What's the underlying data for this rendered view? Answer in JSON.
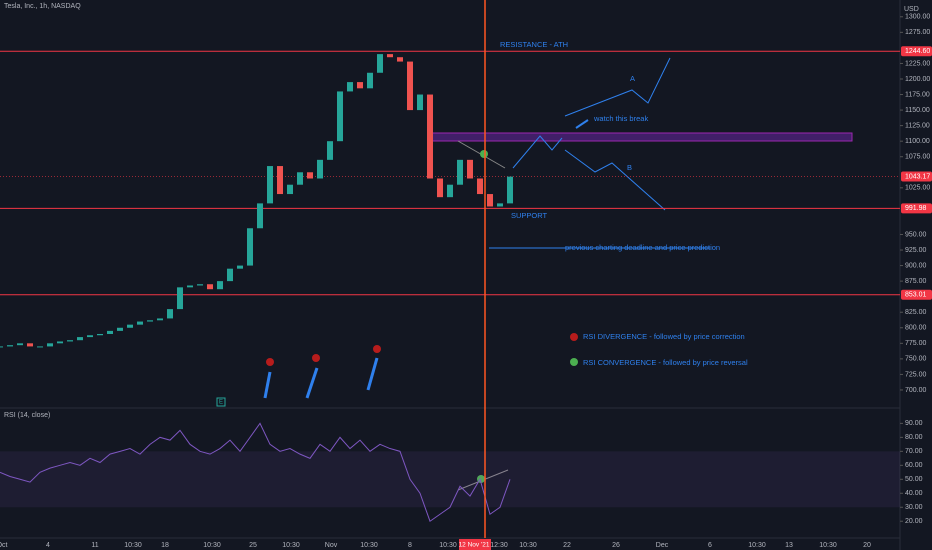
{
  "header": {
    "title": "Tesla, Inc., 1h, NASDAQ",
    "currency": "USD"
  },
  "price": {
    "ylim": [
      671,
      1327
    ],
    "yticks": [
      {
        "value": 700,
        "label": "700.00"
      },
      {
        "value": 725,
        "label": "725.00"
      },
      {
        "value": 750,
        "label": "750.00"
      },
      {
        "value": 775,
        "label": "775.00"
      },
      {
        "value": 800,
        "label": "800.00"
      },
      {
        "value": 825,
        "label": "825.00"
      },
      {
        "value": 875,
        "label": "875.00"
      },
      {
        "value": 900,
        "label": "900.00"
      },
      {
        "value": 925,
        "label": "925.00"
      },
      {
        "value": 950,
        "label": "950.00"
      },
      {
        "value": 1025,
        "label": "1025.00"
      },
      {
        "value": 1075,
        "label": "1075.00"
      },
      {
        "value": 1100,
        "label": "1100.00"
      },
      {
        "value": 1125,
        "label": "1125.00"
      },
      {
        "value": 1150,
        "label": "1150.00"
      },
      {
        "value": 1175,
        "label": "1175.00"
      },
      {
        "value": 1200,
        "label": "1200.00"
      },
      {
        "value": 1225,
        "label": "1225.00"
      },
      {
        "value": 1275,
        "label": "1275.00"
      },
      {
        "value": 1300,
        "label": "1300.00"
      }
    ],
    "levels": [
      {
        "value": 1244.6,
        "label": "1244.60"
      },
      {
        "value": 991.98,
        "label": "991.98"
      },
      {
        "value": 853.01,
        "label": "853.01"
      }
    ],
    "last": {
      "value": 1043.17,
      "label": "1043.17"
    },
    "values": [
      770,
      772,
      775,
      770,
      770,
      775,
      778,
      780,
      785,
      788,
      790,
      795,
      800,
      805,
      810,
      812,
      815,
      830,
      865,
      868,
      870,
      862,
      875,
      895,
      900,
      960,
      1000,
      1060,
      1015,
      1030,
      1050,
      1040,
      1070,
      1100,
      1180,
      1195,
      1185,
      1210,
      1240,
      1235,
      1228,
      1150,
      1175,
      1040,
      1010,
      1030,
      1070,
      1040,
      1015,
      995,
      1000,
      1043
    ]
  },
  "rsi": {
    "title": "RSI (14, close)",
    "ylim": [
      8,
      101
    ],
    "yticks": [
      {
        "value": 20,
        "label": "20.00"
      },
      {
        "value": 30,
        "label": "30.00"
      },
      {
        "value": 40,
        "label": "40.00"
      },
      {
        "value": 50,
        "label": "50.00"
      },
      {
        "value": 60,
        "label": "60.00"
      },
      {
        "value": 70,
        "label": "70.00"
      },
      {
        "value": 80,
        "label": "80.00"
      },
      {
        "value": 90,
        "label": "90.00"
      }
    ],
    "values": [
      55,
      52,
      50,
      48,
      55,
      58,
      60,
      62,
      60,
      65,
      62,
      68,
      70,
      72,
      68,
      75,
      80,
      78,
      85,
      75,
      70,
      68,
      72,
      78,
      70,
      80,
      90,
      75,
      70,
      72,
      68,
      65,
      75,
      70,
      80,
      72,
      78,
      70,
      75,
      72,
      70,
      50,
      40,
      20,
      25,
      30,
      45,
      38,
      50,
      25,
      30,
      50
    ]
  },
  "xaxis": {
    "labels": [
      "Oct",
      "4",
      "11",
      "10:30",
      "18",
      "10:30",
      "25",
      "10:30",
      "Nov",
      "10:30",
      "8",
      "10:30",
      "12 Nov '21",
      "12:30",
      "10:30",
      "22",
      "26",
      "Dec",
      "6",
      "10:30",
      "13",
      "10:30",
      "20"
    ]
  },
  "annotations": {
    "resistance": "RESISTANCE - ATH",
    "watch": "watch this break",
    "a": "A",
    "b": "B",
    "support": "SUPPORT",
    "deadline": "previous charting deadline and price prediction",
    "divergence": "RSI DIVERGENCE - followed by price correction",
    "convergence": "RSI CONVERGENCE - followed by price reversal",
    "earnings": "E"
  }
}
